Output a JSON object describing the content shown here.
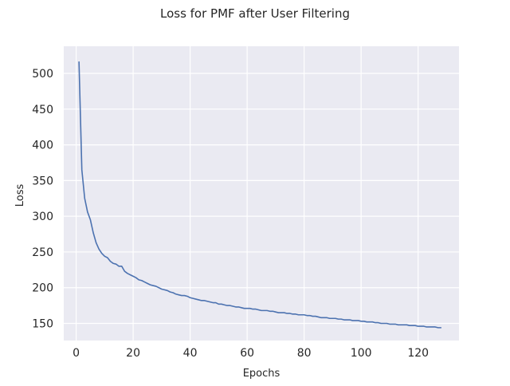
{
  "chart_data": {
    "type": "line",
    "title": "Loss for PMF after User Filtering",
    "xlabel": "Epochs",
    "ylabel": "Loss",
    "xlim": [
      -4.35,
      134.35
    ],
    "ylim": [
      126,
      538
    ],
    "x_ticks": [
      0,
      20,
      40,
      60,
      80,
      100,
      120
    ],
    "y_ticks": [
      150,
      200,
      250,
      300,
      350,
      400,
      450,
      500
    ],
    "grid": true,
    "legend": "none",
    "colors": {
      "background": "#eaeaf2",
      "grid": "#ffffff",
      "line": "#4c72b0"
    },
    "series": [
      {
        "x": [
          1,
          2,
          3,
          4,
          5,
          6,
          7,
          8,
          9,
          10,
          11,
          12,
          13,
          14,
          15,
          16,
          17,
          18,
          19,
          20,
          21,
          22,
          23,
          24,
          25,
          26,
          27,
          28,
          29,
          30,
          31,
          32,
          33,
          34,
          35,
          36,
          37,
          38,
          39,
          40,
          41,
          42,
          43,
          44,
          45,
          46,
          47,
          48,
          49,
          50,
          51,
          52,
          53,
          54,
          55,
          56,
          57,
          58,
          59,
          60,
          61,
          62,
          63,
          64,
          65,
          66,
          67,
          68,
          69,
          70,
          71,
          72,
          73,
          74,
          75,
          76,
          77,
          78,
          79,
          80,
          81,
          82,
          83,
          84,
          85,
          86,
          87,
          88,
          89,
          90,
          91,
          92,
          93,
          94,
          95,
          96,
          97,
          98,
          99,
          100,
          101,
          102,
          103,
          104,
          105,
          106,
          107,
          108,
          109,
          110,
          111,
          112,
          113,
          114,
          115,
          116,
          117,
          118,
          119,
          120,
          121,
          122,
          123,
          124,
          125,
          126,
          127,
          128
        ],
        "values": [
          516,
          365,
          325,
          306,
          295,
          277,
          263,
          254,
          248,
          244,
          242,
          237,
          234,
          233,
          230,
          230,
          223,
          220,
          218,
          216,
          214,
          211,
          210,
          208,
          206,
          204,
          203,
          202,
          200,
          198,
          197,
          196,
          194,
          193,
          191,
          190,
          189,
          189,
          188,
          186,
          185,
          184,
          183,
          182,
          182,
          181,
          180,
          179,
          179,
          177,
          177,
          176,
          175,
          175,
          174,
          173,
          173,
          172,
          171,
          171,
          171,
          170,
          170,
          169,
          168,
          168,
          168,
          167,
          167,
          166,
          165,
          165,
          165,
          164,
          164,
          163,
          163,
          162,
          162,
          162,
          161,
          161,
          160,
          160,
          159,
          158,
          158,
          158,
          157,
          157,
          157,
          156,
          156,
          155,
          155,
          155,
          154,
          154,
          154,
          153,
          153,
          152,
          152,
          152,
          151,
          151,
          150,
          150,
          150,
          149,
          149,
          149,
          148,
          148,
          148,
          148,
          147,
          147,
          147,
          146,
          146,
          146,
          145,
          145,
          145,
          145,
          144,
          144
        ]
      }
    ]
  }
}
